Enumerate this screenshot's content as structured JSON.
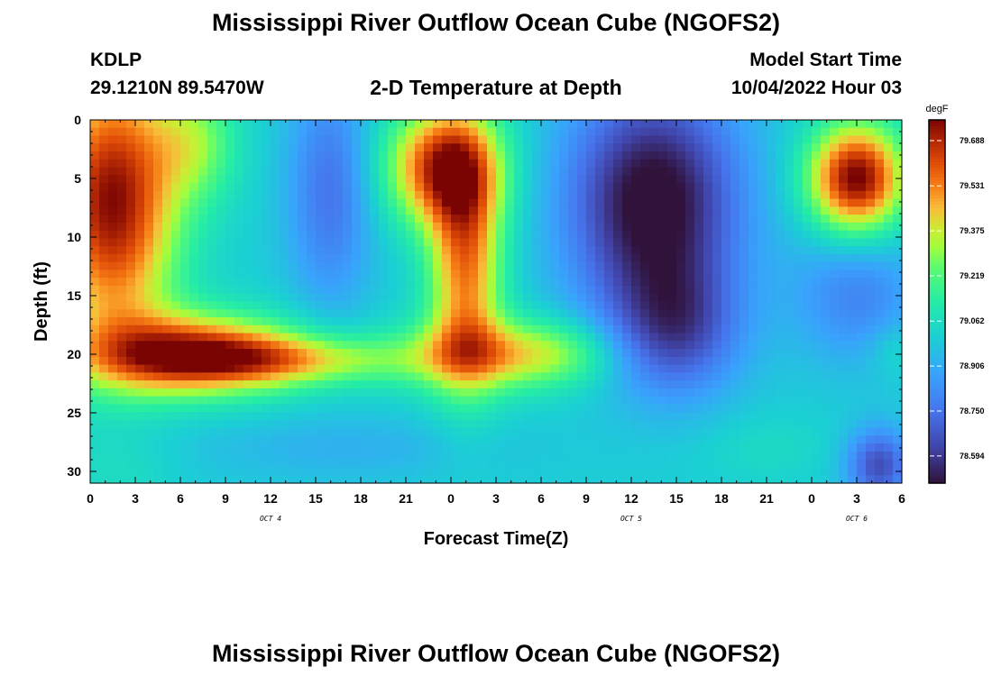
{
  "header": {
    "title": "Mississippi River Outflow Ocean Cube (NGOFS2)",
    "station": "KDLP",
    "coords": "29.1210N  89.5470W",
    "subtitle": "2-D Temperature at Depth",
    "model_start_label": "Model Start Time",
    "model_start_value": "10/04/2022 Hour 03"
  },
  "footer_title": "Mississippi River Outflow Ocean Cube (NGOFS2)",
  "chart_data": {
    "type": "heatmap",
    "xlabel": "Forecast Time(Z)",
    "ylabel": "Depth (ft)",
    "unit": "degF",
    "x_hours_range": [
      0,
      54
    ],
    "y_range": [
      0,
      31
    ],
    "y_inverted": true,
    "x_ticks": [
      "0",
      "3",
      "6",
      "9",
      "12",
      "15",
      "18",
      "21",
      "0",
      "3",
      "6",
      "9",
      "12",
      "15",
      "18",
      "21",
      "0",
      "3",
      "6"
    ],
    "y_ticks": [
      "0",
      "5",
      "10",
      "15",
      "20",
      "25",
      "30"
    ],
    "date_labels": [
      {
        "label": "OCT 4",
        "hour": 12
      },
      {
        "label": "OCT 5",
        "hour": 36
      },
      {
        "label": "OCT 6",
        "hour": 51
      }
    ],
    "colorbar": {
      "ticks": [
        "79.688",
        "79.531",
        "79.375",
        "79.219",
        "79.062",
        "78.906",
        "78.750",
        "78.594"
      ],
      "min": 78.5,
      "max": 79.76
    },
    "field": {
      "background": 79.0,
      "blobs": [
        {
          "t": 1.5,
          "d": 7,
          "st": 3.0,
          "sd": 8.0,
          "a": 0.75
        },
        {
          "t": 6.5,
          "d": 20,
          "st": 5.0,
          "sd": 2.4,
          "a": 0.65
        },
        {
          "t": 13,
          "d": 20.5,
          "st": 6.0,
          "sd": 1.5,
          "a": 0.35
        },
        {
          "t": 7,
          "d": 2,
          "st": 2.0,
          "sd": 3.5,
          "a": 0.25
        },
        {
          "t": 16,
          "d": 6,
          "st": 2.0,
          "sd": 7.0,
          "a": -0.25
        },
        {
          "t": 23.5,
          "d": 4,
          "st": 2.6,
          "sd": 3.5,
          "a": 0.65
        },
        {
          "t": 25,
          "d": 12,
          "st": 1.7,
          "sd": 7.0,
          "a": 0.55
        },
        {
          "t": 25.5,
          "d": 20,
          "st": 3.5,
          "sd": 2.2,
          "a": 0.35
        },
        {
          "t": 31,
          "d": 20,
          "st": 3.0,
          "sd": 2.0,
          "a": 0.25
        },
        {
          "t": 37.5,
          "d": 7,
          "st": 4.0,
          "sd": 7.0,
          "a": -0.55
        },
        {
          "t": 39,
          "d": 18,
          "st": 3.0,
          "sd": 4.0,
          "a": -0.3
        },
        {
          "t": 51,
          "d": 5,
          "st": 2.2,
          "sd": 3.2,
          "a": 0.78
        },
        {
          "t": 51,
          "d": 15,
          "st": 3.0,
          "sd": 4.0,
          "a": -0.2
        },
        {
          "t": 53.5,
          "d": 19.5,
          "st": 1.2,
          "sd": 1.6,
          "a": 0.08
        },
        {
          "t": 52.5,
          "d": 29.5,
          "st": 1.5,
          "sd": 2.2,
          "a": -0.35
        },
        {
          "t": 17,
          "d": 28,
          "st": 7.0,
          "sd": 2.0,
          "a": -0.08
        },
        {
          "t": 2,
          "d": 30,
          "st": 2.5,
          "sd": 2.0,
          "a": 0.05
        },
        {
          "t": 45,
          "d": 28,
          "st": 3.0,
          "sd": 2.0,
          "a": 0.05
        }
      ]
    }
  }
}
